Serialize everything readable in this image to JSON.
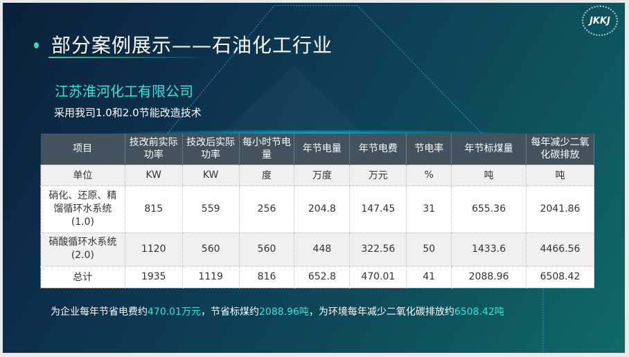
{
  "logo": "JKKJ",
  "title": "部分案例展示——石油化工行业",
  "company": "江苏淮河化工有限公司",
  "subtitle": "采用我司1.0和2.0节能改造技术",
  "table": {
    "headers": [
      "项目",
      "技改前实际功率",
      "技改后实际功率",
      "每小时节电量",
      "年节电量",
      "年节电费",
      "节电率",
      "年节标煤量",
      "每年减少二氧化碳排放"
    ],
    "rows": [
      [
        "单位",
        "KW",
        "KW",
        "度",
        "万度",
        "万元",
        "%",
        "吨",
        "吨"
      ],
      [
        "硝化、还原、精馏循环水系统(1.0)",
        "815",
        "559",
        "256",
        "204.8",
        "147.45",
        "31",
        "655.36",
        "2041.86"
      ],
      [
        "硝酸循环水系统 (2.0)",
        "1120",
        "560",
        "560",
        "448",
        "322.56",
        "50",
        "1433.6",
        "4466.56"
      ],
      [
        "总计",
        "1935",
        "1119",
        "816",
        "652.8",
        "470.01",
        "41",
        "2088.96",
        "6508.42"
      ]
    ]
  },
  "footer": {
    "p1": "为企业每年节省电费约",
    "v1": "470.01万元",
    "p2": "，节省标煤约",
    "v2": "2088.96吨",
    "p3": "，为环境每年减少二氧化碳排放约",
    "v3": "6508.42吨"
  }
}
